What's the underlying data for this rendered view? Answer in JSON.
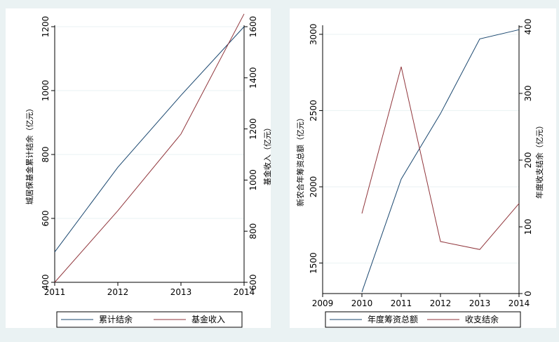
{
  "chart_data": [
    {
      "type": "line",
      "x": [
        2011,
        2012,
        2013,
        2014
      ],
      "xticks": [
        "2011",
        "2012",
        "2013",
        "2014"
      ],
      "xlim": [
        2011,
        2014
      ],
      "ylabel": "城居保基金累计结余（亿元）",
      "ylim": [
        400,
        1200
      ],
      "yticks": [
        "400",
        "600",
        "800",
        "1000",
        "1200"
      ],
      "y2label": "基金收入（亿元）",
      "y2lim": [
        600,
        1600
      ],
      "y2ticks": [
        "600",
        "800",
        "1000",
        "1200",
        "1400",
        "1600"
      ],
      "grid": true,
      "legend_position": "bottom",
      "series": [
        {
          "name": "累计结余",
          "axis": "left",
          "color": "#1a476f",
          "values": [
            495,
            760,
            985,
            1200
          ]
        },
        {
          "name": "基金收入",
          "axis": "right",
          "color": "#90353b",
          "values": [
            600,
            880,
            1180,
            1650
          ]
        }
      ]
    },
    {
      "type": "line",
      "x": [
        2010,
        2011,
        2012,
        2013,
        2014
      ],
      "xticks": [
        "2009",
        "2010",
        "2011",
        "2012",
        "2013",
        "2014"
      ],
      "xlim": [
        2009,
        2014
      ],
      "ylabel": "新农合年筹资总额（亿元）",
      "ylim": [
        1300,
        3050
      ],
      "yticks": [
        "1500",
        "2000",
        "2500",
        "3000"
      ],
      "y2label": "年度收支结余（亿元）",
      "y2lim": [
        0,
        400
      ],
      "y2ticks": [
        "0",
        "100",
        "200",
        "300",
        "400"
      ],
      "grid": true,
      "legend_position": "bottom",
      "series": [
        {
          "name": "年度筹资总额",
          "axis": "left",
          "color": "#1a476f",
          "values": [
            1310,
            2050,
            2480,
            2970,
            3030
          ]
        },
        {
          "name": "收支结余",
          "axis": "right",
          "color": "#90353b",
          "values": [
            120,
            340,
            78,
            66,
            135
          ]
        }
      ]
    }
  ]
}
